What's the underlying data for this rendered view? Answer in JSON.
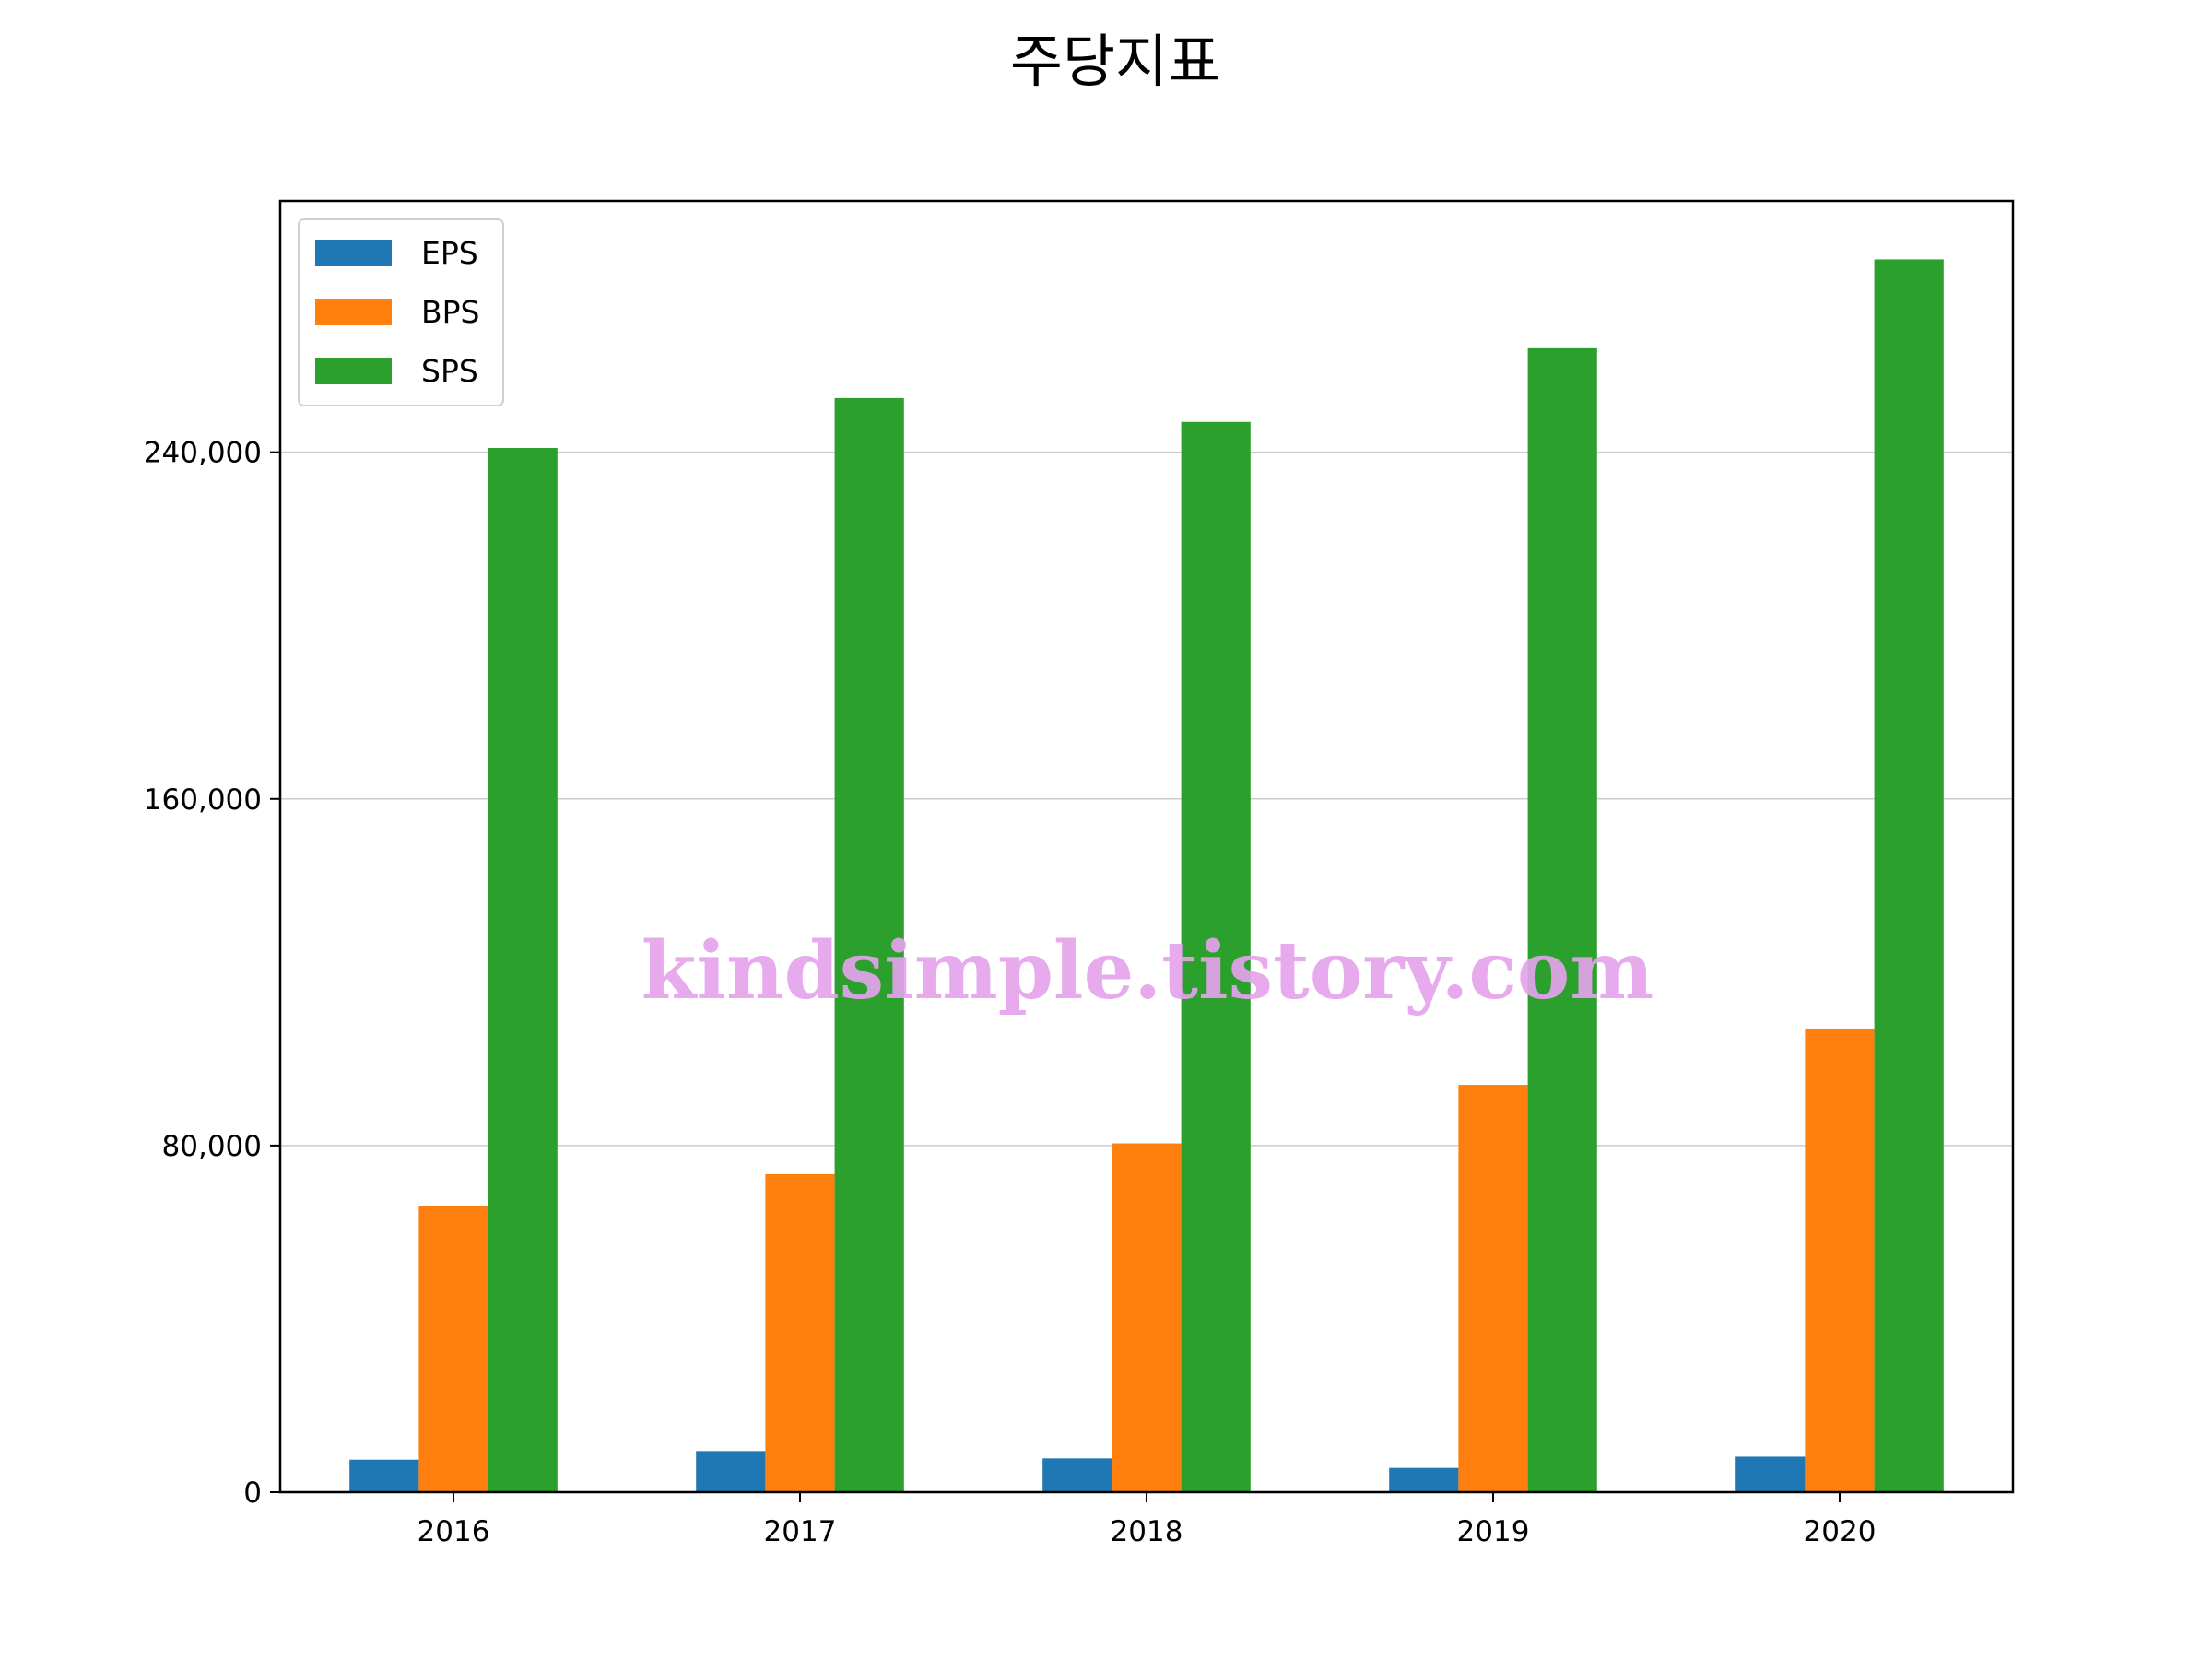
{
  "chart_data": {
    "type": "bar",
    "title": "주당지표",
    "xlabel": "",
    "ylabel": "",
    "categories": [
      "2016",
      "2017",
      "2018",
      "2019",
      "2020"
    ],
    "series": [
      {
        "name": "EPS",
        "color": "#1f77b4",
        "values": [
          7500,
          9500,
          7800,
          5600,
          8200
        ]
      },
      {
        "name": "BPS",
        "color": "#ff7f0e",
        "values": [
          66000,
          73400,
          80500,
          94000,
          107000
        ]
      },
      {
        "name": "SPS",
        "color": "#2ca02c",
        "values": [
          241000,
          252500,
          247000,
          264000,
          284500
        ]
      }
    ],
    "ylim": [
      0,
      298000
    ],
    "yticks": [
      0,
      80000,
      160000,
      240000
    ],
    "ytick_labels": [
      "0",
      "80,000",
      "160,000",
      "240,000"
    ],
    "grid": "horizontal",
    "legend_position": "top-left",
    "watermark": "kindsimple.tistory.com"
  }
}
